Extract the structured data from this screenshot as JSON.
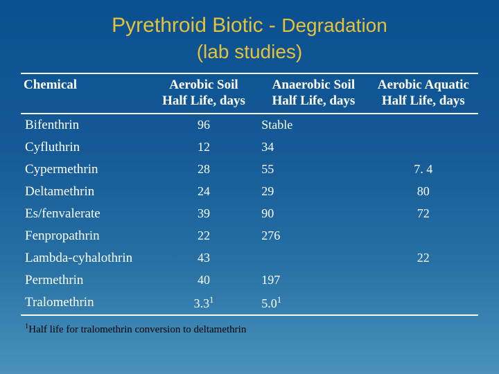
{
  "title_main": "Pyrethroid Biotic - ",
  "title_tail": "Degradation",
  "title_line2": "(lab studies)",
  "columns": {
    "chemical": "Chemical",
    "col1_l1": "Aerobic Soil",
    "col1_l2": "Half Life, days",
    "col2_l1": "Anaerobic Soil",
    "col2_l2": "Half Life, days",
    "col3_l1": "Aerobic Aquatic",
    "col3_l2": "Half Life, days"
  },
  "rows": [
    {
      "chem": "Bifenthrin",
      "aerobic_soil": "96",
      "anaerobic_soil": "Stable",
      "aerobic_aq": ""
    },
    {
      "chem": "Cyfluthrin",
      "aerobic_soil": "12",
      "anaerobic_soil": "34",
      "aerobic_aq": ""
    },
    {
      "chem": "Cypermethrin",
      "aerobic_soil": "28",
      "anaerobic_soil": "55",
      "aerobic_aq": "7. 4"
    },
    {
      "chem": "Deltamethrin",
      "aerobic_soil": "24",
      "anaerobic_soil": "29",
      "aerobic_aq": "80"
    },
    {
      "chem": "Es/fenvalerate",
      "aerobic_soil": "39",
      "anaerobic_soil": "90",
      "aerobic_aq": "72"
    },
    {
      "chem": "Fenpropathrin",
      "aerobic_soil": "22",
      "anaerobic_soil": "276",
      "aerobic_aq": ""
    },
    {
      "chem": "Lambda-cyhalothrin",
      "aerobic_soil": "43",
      "anaerobic_soil": "",
      "aerobic_aq": "22"
    },
    {
      "chem": "Permethrin",
      "aerobic_soil": "40",
      "anaerobic_soil": "197",
      "aerobic_aq": ""
    },
    {
      "chem": "Tralomethrin",
      "aerobic_soil": "3.3",
      "anaerobic_soil": "5.0",
      "aerobic_aq": "",
      "sup": "1"
    }
  ],
  "footnote_sup": "1",
  "footnote_text": "Half life for tralomethrin conversion to deltamethrin",
  "colors": {
    "title_color": "#e6c23a",
    "text_color": "#ffffff",
    "rule_color": "#ffffff",
    "footnote_color": "#000000",
    "bg_top": "#0a5090",
    "bg_bottom": "#4a92bc"
  },
  "fonts": {
    "title_family": "Arial",
    "body_family": "Times New Roman",
    "title_size_pt": 24,
    "header_size_pt": 15,
    "cell_size_pt": 14,
    "footnote_size_pt": 11
  }
}
